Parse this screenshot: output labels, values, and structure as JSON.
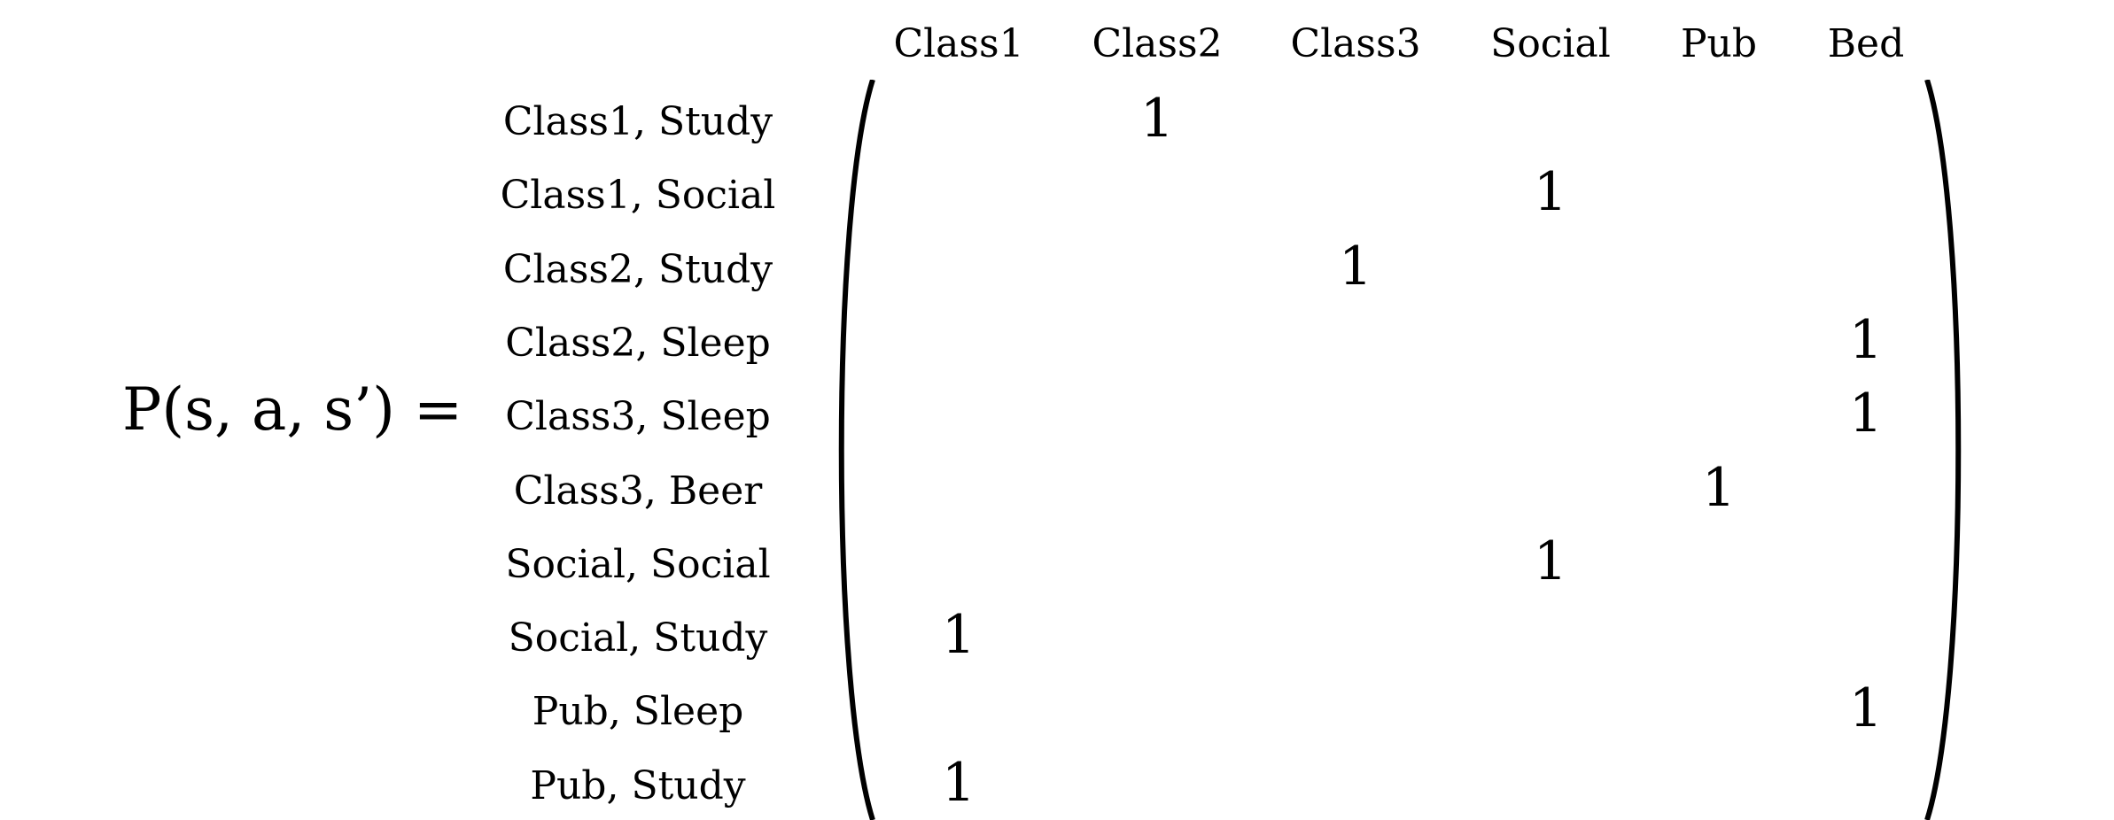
{
  "lhs": "P(s, a, s’) =",
  "columns": [
    "Class1",
    "Class2",
    "Class3",
    "Social",
    "Pub",
    "Bed"
  ],
  "rows": [
    {
      "label": "Class1, Study",
      "col": 1,
      "value": "1"
    },
    {
      "label": "Class1, Social",
      "col": 3,
      "value": "1"
    },
    {
      "label": "Class2, Study",
      "col": 2,
      "value": "1"
    },
    {
      "label": "Class2, Sleep",
      "col": 5,
      "value": "1"
    },
    {
      "label": "Class3, Sleep",
      "col": 5,
      "value": "1"
    },
    {
      "label": "Class3, Beer",
      "col": 4,
      "value": "1"
    },
    {
      "label": "Social, Social",
      "col": 3,
      "value": "1"
    },
    {
      "label": "Social, Study",
      "col": 0,
      "value": "1"
    },
    {
      "label": "Pub, Sleep",
      "col": 5,
      "value": "1"
    },
    {
      "label": "Pub, Study",
      "col": 0,
      "value": "1"
    }
  ]
}
